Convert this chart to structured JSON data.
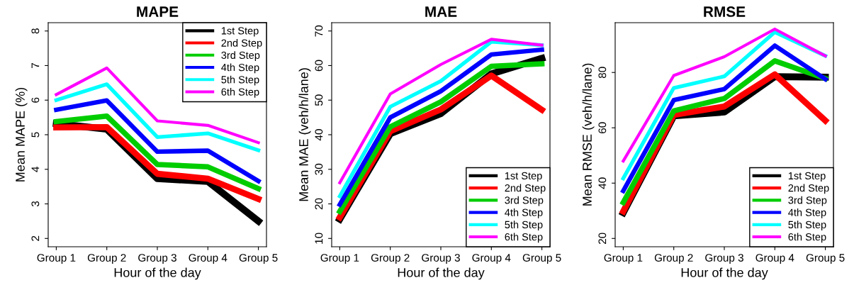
{
  "chart_data": [
    {
      "type": "line",
      "title": "MAPE",
      "xlabel": "Hour of the day",
      "ylabel": "Mean MAPE (%)",
      "categories": [
        "Group 1",
        "Group 2",
        "Group 3",
        "Group 4",
        "Group 5"
      ],
      "ylim": [
        1.76,
        8.24
      ],
      "yticks": [
        2,
        3,
        4,
        5,
        6,
        7,
        8
      ],
      "legend": "top right",
      "grid": false,
      "marker": "none",
      "line_style": "solid",
      "series": [
        {
          "name": "1st Step",
          "color": "#000000",
          "values": [
            5.32,
            5.16,
            3.73,
            3.65,
            2.5
          ]
        },
        {
          "name": "2nd Step",
          "color": "#ff0000",
          "values": [
            5.21,
            5.22,
            3.87,
            3.73,
            3.14
          ]
        },
        {
          "name": "3rd Step",
          "color": "#00cd00",
          "values": [
            5.38,
            5.54,
            4.14,
            4.07,
            3.44
          ]
        },
        {
          "name": "4th Step",
          "color": "#0000ff",
          "values": [
            5.72,
            5.99,
            4.51,
            4.54,
            3.66
          ]
        },
        {
          "name": "5th Step",
          "color": "#00ffff",
          "values": [
            6.0,
            6.46,
            4.93,
            5.04,
            4.55
          ]
        },
        {
          "name": "6th Step",
          "color": "#ff00ff",
          "values": [
            6.16,
            6.93,
            5.4,
            5.27,
            4.77
          ]
        }
      ]
    },
    {
      "type": "line",
      "title": "MAE",
      "xlabel": "Hour of the day",
      "ylabel": "Mean MAE (veh/h/lane)",
      "categories": [
        "Group 1",
        "Group 2",
        "Group 3",
        "Group 4",
        "Group 5"
      ],
      "ylim": [
        7.6,
        72.4
      ],
      "yticks": [
        10,
        20,
        30,
        40,
        50,
        60,
        70
      ],
      "legend": "bottom right",
      "grid": false,
      "marker": "none",
      "line_style": "solid",
      "series": [
        {
          "name": "1st Step",
          "color": "#000000",
          "values": [
            15.6,
            40.3,
            46.1,
            57.6,
            62.1
          ]
        },
        {
          "name": "2nd Step",
          "color": "#ff0000",
          "values": [
            16.1,
            41.0,
            47.3,
            57.1,
            47.2
          ]
        },
        {
          "name": "3rd Step",
          "color": "#00cd00",
          "values": [
            17.8,
            42.3,
            49.5,
            59.8,
            60.5
          ]
        },
        {
          "name": "4th Step",
          "color": "#0000ff",
          "values": [
            19.8,
            45.0,
            52.6,
            63.2,
            64.6
          ]
        },
        {
          "name": "5th Step",
          "color": "#00ffff",
          "values": [
            22.2,
            48.1,
            55.5,
            66.9,
            65.9
          ]
        },
        {
          "name": "6th Step",
          "color": "#ff00ff",
          "values": [
            26.1,
            51.8,
            60.3,
            67.6,
            65.9
          ]
        }
      ]
    },
    {
      "type": "line",
      "title": "RMSE",
      "xlabel": "Hour of the day",
      "ylabel": "Mean RMSE (veh/h/lane)",
      "categories": [
        "Group 1",
        "Group 2",
        "Group 3",
        "Group 4",
        "Group 5"
      ],
      "ylim": [
        17,
        98
      ],
      "yticks": [
        20,
        40,
        60,
        80
      ],
      "legend": "bottom right",
      "grid": false,
      "marker": "none",
      "line_style": "solid",
      "series": [
        {
          "name": "1st Step",
          "color": "#000000",
          "values": [
            29.3,
            64.3,
            65.7,
            78.5,
            78.3
          ]
        },
        {
          "name": "2nd Step",
          "color": "#ff0000",
          "values": [
            29.8,
            64.7,
            67.7,
            79.3,
            62.6
          ]
        },
        {
          "name": "3rd Step",
          "color": "#00cd00",
          "values": [
            33.0,
            66.1,
            70.6,
            84.2,
            77.8
          ]
        },
        {
          "name": "4th Step",
          "color": "#0000ff",
          "values": [
            37.2,
            70.0,
            74.0,
            89.7,
            77.6
          ]
        },
        {
          "name": "5th Step",
          "color": "#00ffff",
          "values": [
            41.7,
            74.4,
            78.6,
            94.6,
            86.0
          ]
        },
        {
          "name": "6th Step",
          "color": "#ff00ff",
          "values": [
            48.0,
            78.9,
            85.7,
            95.7,
            86.0
          ]
        }
      ]
    }
  ]
}
